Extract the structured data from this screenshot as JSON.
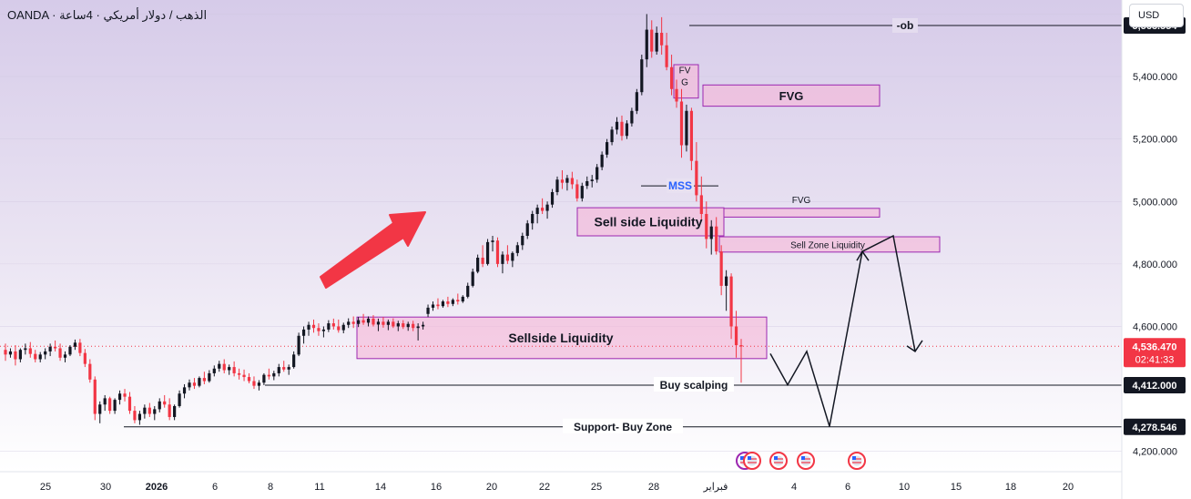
{
  "header": {
    "title": "OANDA · الذهب / دولار أمريكي · 4ساعة",
    "currency_button": "USD"
  },
  "colors": {
    "up": "#131722",
    "down": "#f23645",
    "zone_fill": "#f5b8d8",
    "zone_stroke": "#9c27b0",
    "arrow": "#f23645",
    "mss": "#2962ff",
    "background_top": "#d8cdea",
    "background_bottom": "#ffffff"
  },
  "chart_data": {
    "type": "candlestick",
    "symbol": "XAUUSD",
    "timeframe": "4h",
    "y_ticks": [
      "5,600.000",
      "5,400.000",
      "5,200.000",
      "5,000.000",
      "4,800.000",
      "4,600.000",
      "4,200.000"
    ],
    "y_tick_values": [
      5600,
      5400,
      5200,
      5000,
      4800,
      4600,
      4200
    ],
    "x_ticks": [
      "25",
      "30",
      "2026",
      "6",
      "8",
      "11",
      "14",
      "16",
      "20",
      "22",
      "25",
      "28",
      "فبراير",
      "4",
      "6",
      "10",
      "15",
      "18",
      "20"
    ],
    "ylim": [
      4135,
      5645
    ],
    "current_price": "4,536.470",
    "countdown": "02:41:33",
    "price_labels": [
      {
        "text": "5,563.554",
        "value": 5563.554
      },
      {
        "text": "4,412.000",
        "value": 4412
      },
      {
        "text": "4,278.546",
        "value": 4278.546
      }
    ],
    "annotations": {
      "ob": "-ob",
      "fvg_large": "FVG",
      "fvg_small": "FVG",
      "fvg_split": [
        "FV",
        "G"
      ],
      "mss": "MSS",
      "sell_side_liquidity": "Sell side Liquidity",
      "sell_zone_liquidity": "Sell Zone Liquidity",
      "sellside_liquidity": "Sellside Liquidity",
      "buy_scalping": "Buy scalping",
      "support_buy_zone": "Support- Buy Zone"
    },
    "zones": [
      {
        "name": "fvg-large",
        "price_top": 5373,
        "price_bottom": 5305
      },
      {
        "name": "fvg-small",
        "price_top": 4978,
        "price_bottom": 4950
      },
      {
        "name": "sell-side-liquidity",
        "price_top": 4980,
        "price_bottom": 4890
      },
      {
        "name": "sell-zone-liquidity",
        "price_top": 4887,
        "price_bottom": 4838
      },
      {
        "name": "sellside-liquidity",
        "price_top": 4630,
        "price_bottom": 4497
      },
      {
        "name": "fvg-split",
        "price_top": 5438,
        "price_bottom": 5331
      }
    ],
    "levels": [
      {
        "name": "ob-line",
        "value": 5563.554
      },
      {
        "name": "buy-scalping-line",
        "value": 4412
      },
      {
        "name": "support-line",
        "value": 4278.546
      },
      {
        "name": "mss-line",
        "value": 5050
      }
    ],
    "projection": [
      4513,
      4413,
      4520,
      4280,
      4840,
      4890,
      4520
    ],
    "events_count": 5,
    "candles": [
      [
        4525,
        4545,
        4490,
        4510
      ],
      [
        4510,
        4530,
        4500,
        4520
      ],
      [
        4520,
        4540,
        4475,
        4495
      ],
      [
        4495,
        4530,
        4485,
        4525
      ],
      [
        4525,
        4545,
        4510,
        4530
      ],
      [
        4530,
        4550,
        4500,
        4512
      ],
      [
        4512,
        4525,
        4485,
        4495
      ],
      [
        4495,
        4518,
        4485,
        4510
      ],
      [
        4510,
        4530,
        4495,
        4520
      ],
      [
        4520,
        4545,
        4505,
        4535
      ],
      [
        4535,
        4555,
        4520,
        4530
      ],
      [
        4530,
        4545,
        4490,
        4500
      ],
      [
        4500,
        4520,
        4485,
        4510
      ],
      [
        4510,
        4540,
        4505,
        4535
      ],
      [
        4535,
        4558,
        4525,
        4548
      ],
      [
        4548,
        4560,
        4505,
        4515
      ],
      [
        4515,
        4528,
        4470,
        4480
      ],
      [
        4480,
        4495,
        4420,
        4430
      ],
      [
        4430,
        4440,
        4300,
        4320
      ],
      [
        4320,
        4360,
        4290,
        4350
      ],
      [
        4350,
        4380,
        4330,
        4370
      ],
      [
        4370,
        4375,
        4320,
        4330
      ],
      [
        4330,
        4370,
        4320,
        4365
      ],
      [
        4365,
        4395,
        4350,
        4385
      ],
      [
        4385,
        4400,
        4360,
        4375
      ],
      [
        4375,
        4390,
        4320,
        4330
      ],
      [
        4330,
        4345,
        4290,
        4300
      ],
      [
        4300,
        4330,
        4285,
        4320
      ],
      [
        4320,
        4350,
        4305,
        4340
      ],
      [
        4340,
        4355,
        4310,
        4320
      ],
      [
        4320,
        4345,
        4300,
        4335
      ],
      [
        4335,
        4370,
        4325,
        4360
      ],
      [
        4360,
        4380,
        4340,
        4350
      ],
      [
        4350,
        4370,
        4300,
        4310
      ],
      [
        4310,
        4350,
        4300,
        4345
      ],
      [
        4345,
        4395,
        4340,
        4385
      ],
      [
        4385,
        4415,
        4370,
        4405
      ],
      [
        4405,
        4430,
        4395,
        4420
      ],
      [
        4420,
        4435,
        4400,
        4410
      ],
      [
        4410,
        4440,
        4405,
        4435
      ],
      [
        4435,
        4455,
        4415,
        4425
      ],
      [
        4425,
        4460,
        4420,
        4450
      ],
      [
        4450,
        4475,
        4440,
        4465
      ],
      [
        4465,
        4490,
        4455,
        4480
      ],
      [
        4480,
        4495,
        4450,
        4460
      ],
      [
        4460,
        4478,
        4445,
        4470
      ],
      [
        4470,
        4488,
        4440,
        4450
      ],
      [
        4450,
        4465,
        4430,
        4445
      ],
      [
        4445,
        4462,
        4425,
        4438
      ],
      [
        4438,
        4450,
        4418,
        4425
      ],
      [
        4425,
        4440,
        4400,
        4410
      ],
      [
        4410,
        4428,
        4395,
        4420
      ],
      [
        4420,
        4450,
        4412,
        4445
      ],
      [
        4445,
        4465,
        4430,
        4440
      ],
      [
        4440,
        4458,
        4428,
        4450
      ],
      [
        4450,
        4480,
        4440,
        4470
      ],
      [
        4470,
        4490,
        4455,
        4462
      ],
      [
        4462,
        4478,
        4445,
        4470
      ],
      [
        4470,
        4520,
        4465,
        4510
      ],
      [
        4510,
        4580,
        4505,
        4570
      ],
      [
        4570,
        4600,
        4545,
        4590
      ],
      [
        4590,
        4615,
        4570,
        4605
      ],
      [
        4605,
        4622,
        4580,
        4595
      ],
      [
        4595,
        4610,
        4570,
        4585
      ],
      [
        4585,
        4600,
        4565,
        4590
      ],
      [
        4590,
        4620,
        4582,
        4610
      ],
      [
        4610,
        4625,
        4590,
        4600
      ],
      [
        4600,
        4622,
        4580,
        4588
      ],
      [
        4588,
        4612,
        4578,
        4605
      ],
      [
        4605,
        4626,
        4595,
        4615
      ],
      [
        4615,
        4632,
        4595,
        4608
      ],
      [
        4608,
        4630,
        4598,
        4620
      ],
      [
        4620,
        4640,
        4605,
        4612
      ],
      [
        4612,
        4632,
        4600,
        4625
      ],
      [
        4625,
        4636,
        4600,
        4606
      ],
      [
        4606,
        4625,
        4585,
        4615
      ],
      [
        4615,
        4630,
        4596,
        4605
      ],
      [
        4605,
        4622,
        4588,
        4615
      ],
      [
        4615,
        4626,
        4595,
        4600
      ],
      [
        4600,
        4618,
        4585,
        4610
      ],
      [
        4610,
        4620,
        4592,
        4598
      ],
      [
        4598,
        4615,
        4586,
        4608
      ],
      [
        4608,
        4618,
        4585,
        4595
      ],
      [
        4595,
        4610,
        4555,
        4600
      ],
      [
        4600,
        4615,
        4590,
        4605
      ],
      [
        4640,
        4670,
        4630,
        4660
      ],
      [
        4660,
        4680,
        4650,
        4670
      ],
      [
        4670,
        4690,
        4655,
        4665
      ],
      [
        4665,
        4685,
        4660,
        4680
      ],
      [
        4680,
        4695,
        4662,
        4672
      ],
      [
        4672,
        4690,
        4665,
        4685
      ],
      [
        4685,
        4705,
        4670,
        4680
      ],
      [
        4680,
        4700,
        4675,
        4695
      ],
      [
        4695,
        4740,
        4690,
        4730
      ],
      [
        4730,
        4785,
        4725,
        4775
      ],
      [
        4775,
        4830,
        4770,
        4820
      ],
      [
        4820,
        4860,
        4790,
        4800
      ],
      [
        4800,
        4880,
        4795,
        4870
      ],
      [
        4870,
        4890,
        4840,
        4875
      ],
      [
        4875,
        4885,
        4790,
        4800
      ],
      [
        4800,
        4840,
        4770,
        4830
      ],
      [
        4830,
        4860,
        4800,
        4810
      ],
      [
        4810,
        4840,
        4790,
        4835
      ],
      [
        4835,
        4870,
        4825,
        4860
      ],
      [
        4860,
        4900,
        4845,
        4890
      ],
      [
        4890,
        4940,
        4880,
        4930
      ],
      [
        4930,
        4970,
        4910,
        4960
      ],
      [
        4960,
        4990,
        4930,
        4980
      ],
      [
        4980,
        5010,
        4960,
        4970
      ],
      [
        4970,
        5000,
        4945,
        4990
      ],
      [
        4990,
        5040,
        4980,
        5030
      ],
      [
        5030,
        5080,
        5020,
        5070
      ],
      [
        5070,
        5100,
        5040,
        5060
      ],
      [
        5060,
        5085,
        5035,
        5075
      ],
      [
        5075,
        5095,
        5040,
        5055
      ],
      [
        5055,
        5070,
        5000,
        5010
      ],
      [
        5010,
        5060,
        5000,
        5050
      ],
      [
        5050,
        5080,
        5040,
        5065
      ],
      [
        5065,
        5085,
        5045,
        5070
      ],
      [
        5070,
        5120,
        5060,
        5110
      ],
      [
        5110,
        5160,
        5100,
        5150
      ],
      [
        5150,
        5200,
        5140,
        5190
      ],
      [
        5190,
        5240,
        5180,
        5230
      ],
      [
        5230,
        5270,
        5215,
        5255
      ],
      [
        5255,
        5275,
        5195,
        5210
      ],
      [
        5210,
        5260,
        5200,
        5250
      ],
      [
        5250,
        5300,
        5240,
        5290
      ],
      [
        5290,
        5360,
        5280,
        5350
      ],
      [
        5350,
        5470,
        5340,
        5455
      ],
      [
        5455,
        5600,
        5430,
        5550
      ],
      [
        5550,
        5580,
        5460,
        5480
      ],
      [
        5480,
        5560,
        5470,
        5540
      ],
      [
        5540,
        5590,
        5470,
        5500
      ],
      [
        5500,
        5540,
        5420,
        5430
      ],
      [
        5430,
        5470,
        5340,
        5360
      ],
      [
        5360,
        5390,
        5300,
        5320
      ],
      [
        5320,
        5360,
        5140,
        5180
      ],
      [
        5180,
        5310,
        5160,
        5290
      ],
      [
        5290,
        5300,
        5100,
        5130
      ],
      [
        5130,
        5190,
        5000,
        5020
      ],
      [
        5020,
        5080,
        4940,
        4960
      ],
      [
        4960,
        5000,
        4850,
        4880
      ],
      [
        4880,
        4940,
        4830,
        4920
      ],
      [
        4920,
        4950,
        4830,
        4840
      ],
      [
        4840,
        4860,
        4700,
        4730
      ],
      [
        4730,
        4780,
        4650,
        4760
      ],
      [
        4760,
        4770,
        4560,
        4600
      ],
      [
        4600,
        4650,
        4500,
        4540
      ],
      [
        4540,
        4560,
        4420,
        4536
      ]
    ]
  }
}
